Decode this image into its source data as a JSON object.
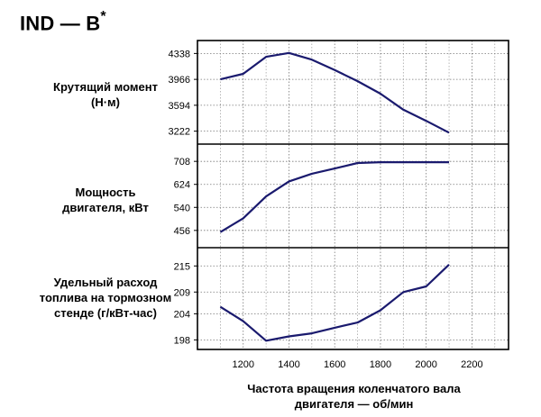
{
  "title": "IND — B",
  "title_mark": "*",
  "chart_data": {
    "type": "line",
    "x_ticks": [
      1200,
      1400,
      1600,
      1800,
      2000,
      2200
    ],
    "x_range": [
      1000,
      2360
    ],
    "xlabel_line1": "Частота вращения коленчатого вала",
    "xlabel_line2": "двигателя — об/мин",
    "grid": true,
    "line_color": "#1a1a6e",
    "panels": [
      {
        "ylabel_line1": "Крутящий момент",
        "ylabel_line2": "(Н·м)",
        "ylabel_line3": "",
        "y_ticks": [
          3222,
          3594,
          3966,
          4338
        ],
        "ylim": [
          3036,
          4524
        ],
        "x": [
          1100,
          1200,
          1300,
          1400,
          1500,
          1600,
          1700,
          1800,
          1900,
          2000,
          2100
        ],
        "values": [
          3966,
          4045,
          4290,
          4345,
          4250,
          4100,
          3940,
          3760,
          3530,
          3370,
          3200
        ]
      },
      {
        "ylabel_line1": "Мощность",
        "ylabel_line2": "двигателя, кВт",
        "ylabel_line3": "",
        "y_ticks": [
          456,
          540,
          624,
          708
        ],
        "ylim": [
          393,
          771
        ],
        "x": [
          1100,
          1200,
          1300,
          1400,
          1500,
          1600,
          1700,
          1800,
          1900,
          2000,
          2100
        ],
        "values": [
          450,
          500,
          580,
          635,
          663,
          682,
          702,
          705,
          705,
          705,
          705
        ]
      },
      {
        "ylabel_line1": "Удельный расход",
        "ylabel_line2": "топлива на тормозном",
        "ylabel_line3": "стенде (г/кВт-час)",
        "y_ticks": [
          198,
          204,
          209,
          215
        ],
        "ylim": [
          195.8,
          219.2
        ],
        "x": [
          1100,
          1200,
          1300,
          1400,
          1500,
          1600,
          1700,
          1800,
          1900,
          2000,
          2100
        ],
        "values": [
          205.6,
          202.3,
          197.8,
          198.8,
          199.5,
          200.8,
          202.0,
          204.8,
          209.0,
          210.3,
          215.3
        ]
      }
    ]
  }
}
